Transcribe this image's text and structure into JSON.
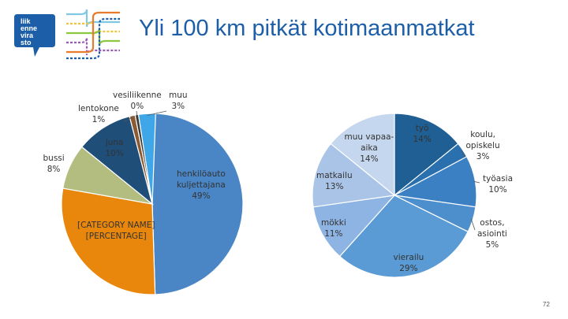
{
  "slide": {
    "title": "Yli 100 km pitkät kotimaanmatkat",
    "page_number": "72",
    "logo_text": [
      "liik",
      "enne",
      "vira",
      "sto"
    ]
  },
  "colors": {
    "title": "#1c5ea8",
    "logo_bg": "#1c5ea8",
    "arrows": [
      "#7ec8e3",
      "#f0c43c",
      "#8dc63f",
      "#9b59b6",
      "#e77b2e",
      "#1c5ea8"
    ]
  },
  "chart_data": [
    {
      "type": "pie",
      "title": "",
      "slices": [
        {
          "label": "henkilöauto kuljettajana",
          "value": 49,
          "text": "henkilöauto\nkuljettajana\n49%",
          "color": "#4a86c5"
        },
        {
          "label": "[CATEGORY NAME]",
          "value": 28,
          "text": "[CATEGORY NAME]\n[PERCENTAGE]",
          "color": "#e8870c"
        },
        {
          "label": "bussi",
          "value": 8,
          "text": "bussi\n8%",
          "color": "#b3bd80"
        },
        {
          "label": "juna",
          "value": 10,
          "text": "juna\n10%",
          "color": "#1f4e79"
        },
        {
          "label": "lentokone",
          "value": 1,
          "text": "lentokone\n1%",
          "color": "#8c5a32"
        },
        {
          "label": "vesiliikenne",
          "value": 0,
          "text": "vesiliikenne\n0%",
          "color": "#3a3a3a"
        },
        {
          "label": "muu",
          "value": 3,
          "text": "muu\n3%",
          "color": "#3fa6e8"
        }
      ]
    },
    {
      "type": "pie",
      "title": "",
      "slices": [
        {
          "label": "työ",
          "value": 14,
          "text": "työ\n14%",
          "color": "#1f5f93"
        },
        {
          "label": "koulu, opiskelu",
          "value": 3,
          "text": "koulu,\nopiskelu\n3%",
          "color": "#2a6fae"
        },
        {
          "label": "työasia",
          "value": 10,
          "text": "työasia\n10%",
          "color": "#3a80c2"
        },
        {
          "label": "ostos, asiointi",
          "value": 5,
          "text": "ostos,\nasiointi\n5%",
          "color": "#4d8fcc"
        },
        {
          "label": "vierailu",
          "value": 29,
          "text": "vierailu\n29%",
          "color": "#5b9bd5"
        },
        {
          "label": "mökki",
          "value": 11,
          "text": "mökki\n11%",
          "color": "#8eb4e3"
        },
        {
          "label": "matkailu",
          "value": 13,
          "text": "matkailu\n13%",
          "color": "#a9c4e6"
        },
        {
          "label": "muu vapaa-aika",
          "value": 14,
          "text": "muu vapaa-\naika\n14%",
          "color": "#c5d7ee"
        }
      ]
    }
  ]
}
